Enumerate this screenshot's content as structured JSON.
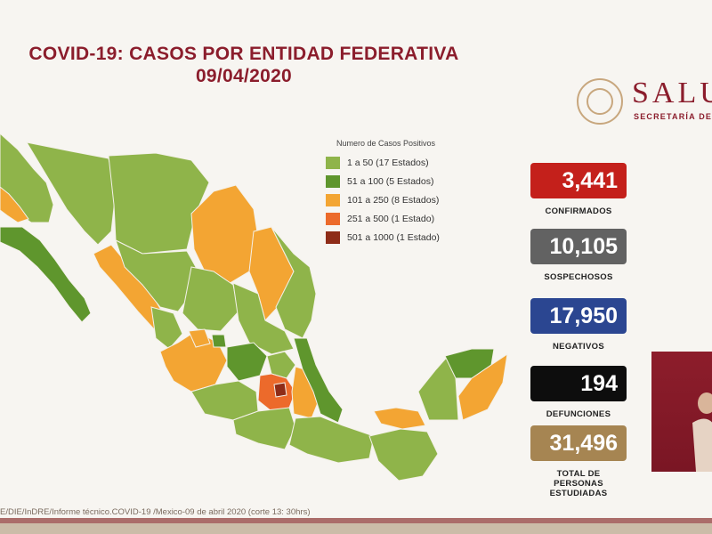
{
  "title": {
    "line1": "COVID-19: CASOS POR ENTIDAD FEDERATIVA",
    "line2": "09/04/2020"
  },
  "logo": {
    "word": "SALU",
    "subtitle": "SECRETARÍA DE SA"
  },
  "legend": {
    "title": "Numero de Casos Positivos",
    "items": [
      {
        "label": "1 a    50  (17 Estados)",
        "color": "#8fb44a"
      },
      {
        "label": "51 a  100   (5 Estados)",
        "color": "#5f962d"
      },
      {
        "label": "101 a  250   (8 Estados)",
        "color": "#f3a533"
      },
      {
        "label": "251 a  500   (1 Estado)",
        "color": "#ec6a2b"
      },
      {
        "label": "501 a 1000   (1 Estado)",
        "color": "#8e2c18"
      }
    ]
  },
  "stats": [
    {
      "value": "3,441",
      "label": "CONFIRMADOS",
      "color": "#c4201b"
    },
    {
      "value": "10,105",
      "label": "SOSPECHOSOS",
      "color": "#626262"
    },
    {
      "value": "17,950",
      "label": "NEGATIVOS",
      "color": "#2b4691"
    },
    {
      "value": "194",
      "label": "DEFUNCIONES",
      "color": "#0d0d0d"
    },
    {
      "value": "31,496",
      "label_lines": [
        "TOTAL DE",
        "PERSONAS",
        "ESTUDIADAS"
      ],
      "color": "#a68552"
    }
  ],
  "footer": "E/DIE/InDRE/Informe técnico.COVID-19 /Mexico-09 de abril 2020 (corte 13: 30hrs)"
}
